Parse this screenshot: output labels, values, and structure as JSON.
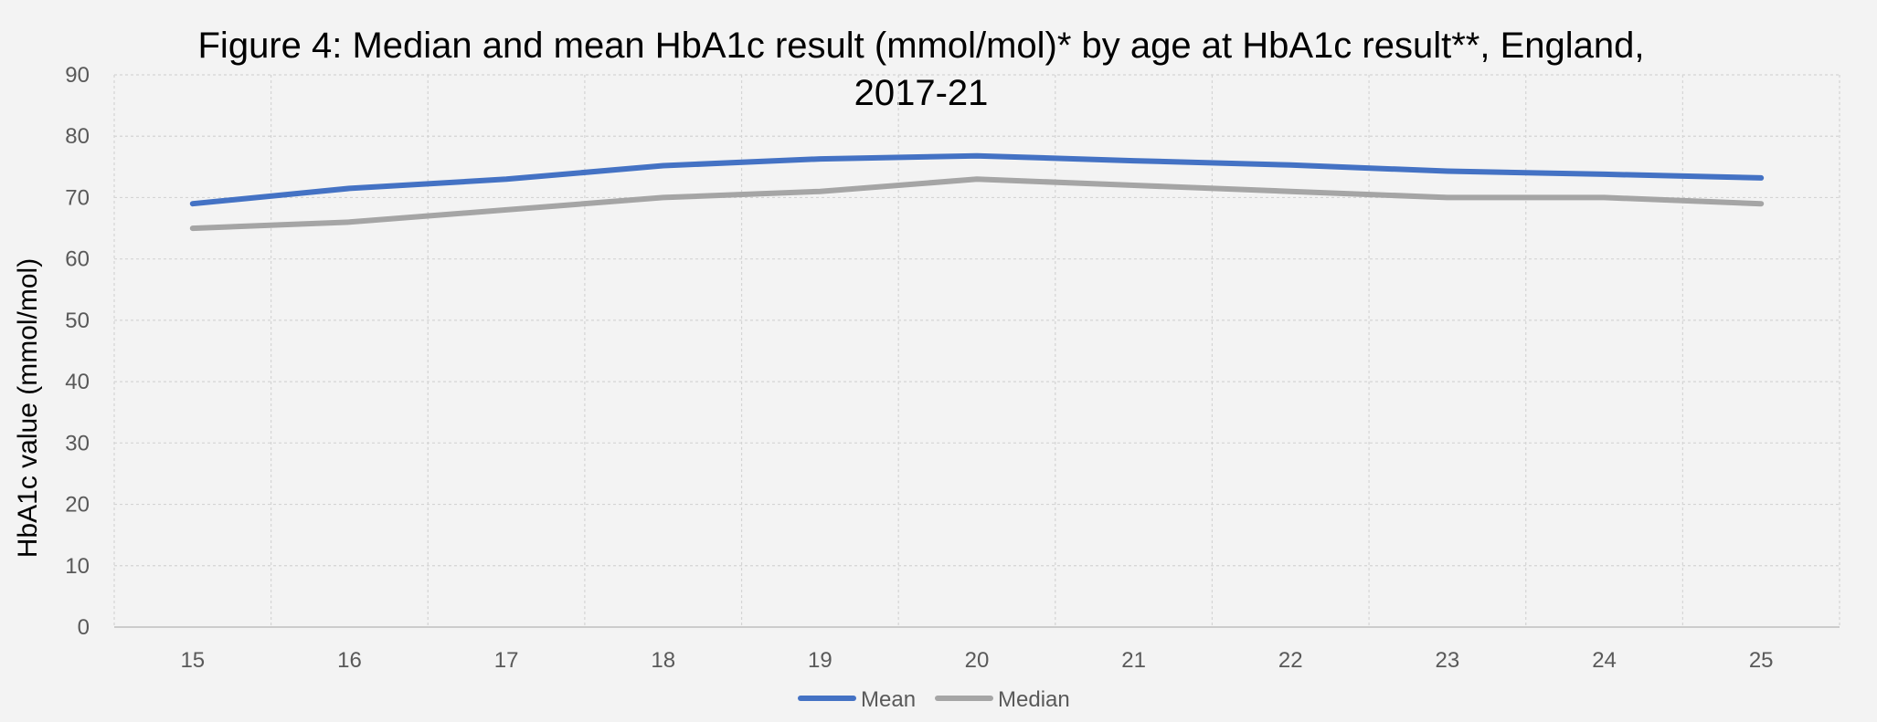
{
  "chart_data": {
    "type": "line",
    "title_line1": "Figure 4: Median and mean HbA1c result (mmol/mol)* by age at HbA1c result**, England,",
    "title_line2": "2017-21",
    "xlabel": "",
    "ylabel": "HbA1c value (mmol/mol)",
    "categories": [
      "15",
      "16",
      "17",
      "18",
      "19",
      "20",
      "21",
      "22",
      "23",
      "24",
      "25"
    ],
    "yticks": [
      "0",
      "10",
      "20",
      "30",
      "40",
      "50",
      "60",
      "70",
      "80",
      "90"
    ],
    "ylim": [
      0,
      90
    ],
    "grid": true,
    "legend_position": "bottom",
    "series": [
      {
        "name": "Mean",
        "color": "#4472c4",
        "values": [
          69,
          71.5,
          73,
          75.2,
          76.3,
          76.8,
          76,
          75.3,
          74.3,
          73.8,
          73.2
        ]
      },
      {
        "name": "Median",
        "color": "#a5a5a5",
        "values": [
          65,
          66,
          68,
          70,
          71,
          73,
          72,
          71,
          70,
          70,
          69
        ]
      }
    ]
  }
}
